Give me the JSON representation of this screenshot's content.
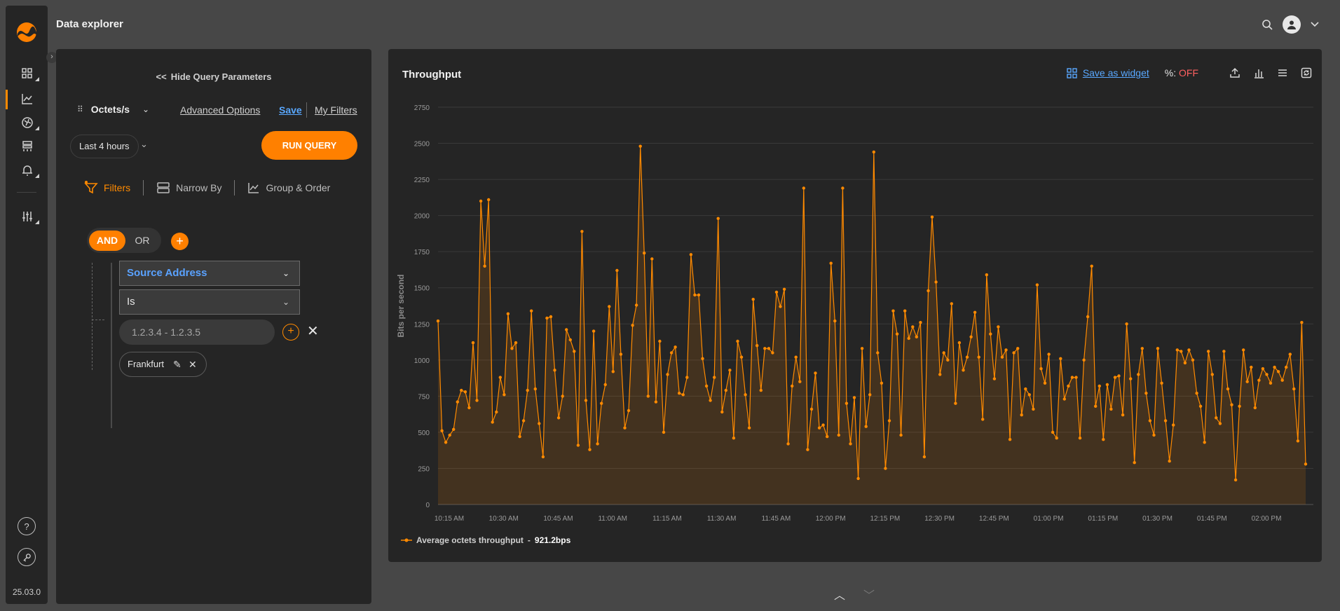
{
  "app": {
    "page_title": "Data explorer",
    "version": "25.03.0"
  },
  "query_panel": {
    "hide_label": "Hide Query Parameters",
    "metric": "Octets/s",
    "advanced_options": "Advanced Options",
    "save": "Save",
    "my_filters": "My Filters",
    "time_range": "Last 4 hours",
    "run_query": "RUN QUERY",
    "tabs": [
      "Filters",
      "Narrow By",
      "Group & Order"
    ],
    "logic": {
      "and": "AND",
      "or": "OR"
    },
    "filter_field": "Source Address",
    "filter_operator": "Is",
    "filter_value_placeholder": "1.2.3.4 - 1.2.3.5",
    "chip_label": "Frankfurt"
  },
  "card": {
    "title": "Throughput",
    "save_as_widget": "Save as widget",
    "percent_label": "%:",
    "percent_state": "OFF",
    "accent_color": "#ff8a00"
  },
  "chart_data": {
    "type": "area",
    "ylabel": "Bits per second",
    "ylim": [
      0,
      2750
    ],
    "yticks": [
      0,
      250,
      500,
      750,
      1000,
      1250,
      1500,
      1750,
      2000,
      2250,
      2500,
      2750
    ],
    "xticks": [
      "10:15 AM",
      "10:30 AM",
      "10:45 AM",
      "11:00 AM",
      "11:15 AM",
      "11:30 AM",
      "11:45 AM",
      "12:00 PM",
      "12:15 PM",
      "12:30 PM",
      "12:45 PM",
      "01:00 PM",
      "01:15 PM",
      "01:30 PM",
      "01:45 PM",
      "02:00 PM"
    ],
    "grid": true,
    "legend_position": "bottom-left",
    "series": [
      {
        "name": "Average octets throughput",
        "summary": "921.2bps",
        "color": "#ff8a00",
        "values": [
          1270,
          510,
          430,
          480,
          520,
          710,
          790,
          780,
          670,
          1120,
          720,
          2100,
          1650,
          2110,
          570,
          640,
          880,
          760,
          1320,
          1080,
          1120,
          470,
          580,
          790,
          1340,
          800,
          560,
          330,
          1290,
          1300,
          930,
          600,
          750,
          1210,
          1140,
          1060,
          410,
          1890,
          720,
          380,
          1200,
          420,
          700,
          830,
          1370,
          920,
          1620,
          1040,
          530,
          650,
          1240,
          1380,
          2480,
          1740,
          750,
          1700,
          710,
          1130,
          500,
          900,
          1050,
          1090,
          770,
          760,
          880,
          1730,
          1450,
          1450,
          1010,
          820,
          720,
          880,
          1980,
          640,
          790,
          930,
          460,
          1130,
          1020,
          760,
          530,
          1420,
          1100,
          790,
          1080,
          1080,
          1050,
          1470,
          1370,
          1490,
          420,
          820,
          1020,
          850,
          2190,
          380,
          660,
          910,
          530,
          550,
          470,
          1670,
          1270,
          480,
          2190,
          700,
          420,
          740,
          180,
          1080,
          540,
          760,
          2440,
          1050,
          840,
          250,
          580,
          1340,
          1180,
          480,
          1340,
          1150,
          1230,
          1160,
          1260,
          330,
          1480,
          1990,
          1540,
          900,
          1050,
          1000,
          1390,
          700,
          1120,
          930,
          1020,
          1160,
          1330,
          1020,
          590,
          1590,
          1180,
          870,
          1230,
          1020,
          1070,
          450,
          1050,
          1080,
          620,
          800,
          760,
          660,
          1520,
          940,
          840,
          1040,
          500,
          460,
          1010,
          730,
          820,
          880,
          880,
          460,
          1000,
          1300,
          1650,
          680,
          820,
          450,
          830,
          660,
          880,
          890,
          620,
          1250,
          870,
          290,
          900,
          1080,
          770,
          580,
          480,
          1080,
          840,
          580,
          300,
          550,
          1070,
          1060,
          980,
          1070,
          1000,
          770,
          680,
          430,
          1060,
          900,
          600,
          560,
          1060,
          800,
          690,
          170,
          680,
          1070,
          850,
          950,
          670,
          860,
          940,
          900,
          840,
          950,
          920,
          860,
          950,
          1040,
          800,
          440,
          1260,
          280
        ]
      }
    ]
  }
}
